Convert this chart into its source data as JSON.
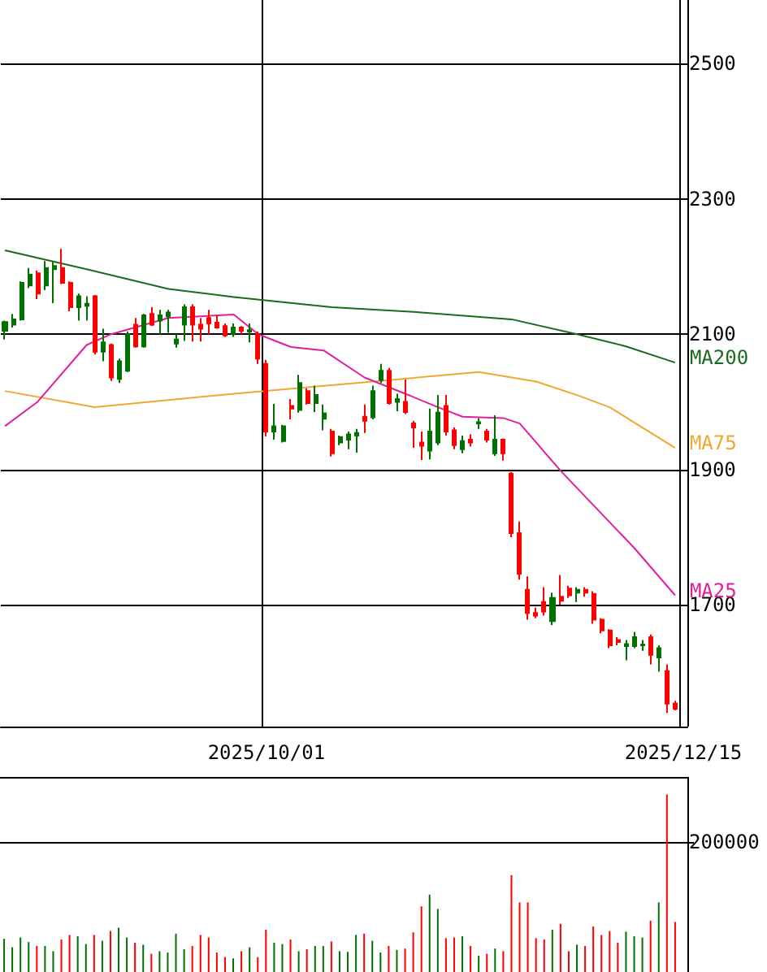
{
  "chart_data": [
    {
      "type": "candlestick",
      "categories": [
        null,
        null,
        null,
        null,
        null,
        null,
        null,
        null,
        null,
        null,
        null,
        null,
        null,
        null,
        null,
        null,
        null,
        null,
        null,
        null,
        null,
        null,
        null,
        null,
        null,
        null,
        null,
        null,
        null,
        null,
        null,
        null,
        "2025/10/01",
        null,
        null,
        null,
        null,
        null,
        null,
        null,
        null,
        null,
        null,
        null,
        null,
        null,
        null,
        null,
        null,
        null,
        null,
        null,
        null,
        null,
        null,
        null,
        null,
        null,
        null,
        null,
        null,
        null,
        null,
        null,
        null,
        null,
        null,
        null,
        null,
        null,
        null,
        null,
        null,
        null,
        null,
        null,
        null,
        null,
        null,
        null,
        null,
        null,
        null,
        "2025/12/15"
      ],
      "ohlc": [
        [
          2105,
          2120,
          2092,
          2118
        ],
        [
          2114,
          2130,
          2110,
          2122
        ],
        [
          2122,
          2178,
          2120,
          2176
        ],
        [
          2172,
          2198,
          2168,
          2188
        ],
        [
          2190,
          2194,
          2152,
          2160
        ],
        [
          2172,
          2208,
          2165,
          2198
        ],
        [
          2196,
          2208,
          2146,
          2201
        ],
        [
          2198,
          2226,
          2174,
          2176
        ],
        [
          2176,
          2178,
          2134,
          2140
        ],
        [
          2140,
          2160,
          2120,
          2156
        ],
        [
          2142,
          2156,
          2120,
          2145
        ],
        [
          2156,
          2158,
          2070,
          2074
        ],
        [
          2074,
          2108,
          2060,
          2088
        ],
        [
          2084,
          2086,
          2031,
          2036
        ],
        [
          2034,
          2064,
          2028,
          2060
        ],
        [
          2046,
          2104,
          2044,
          2100
        ],
        [
          2114,
          2124,
          2080,
          2082
        ],
        [
          2082,
          2130,
          2080,
          2128
        ],
        [
          2130,
          2140,
          2112,
          2114
        ],
        [
          2120,
          2136,
          2100,
          2128
        ],
        [
          2126,
          2136,
          2102,
          2132
        ],
        [
          2086,
          2100,
          2080,
          2092
        ],
        [
          2114,
          2144,
          2090,
          2140
        ],
        [
          2140,
          2144,
          2089,
          2114
        ],
        [
          2114,
          2124,
          2089,
          2108
        ],
        [
          2124,
          2136,
          2100,
          2116
        ],
        [
          2117,
          2128,
          2108,
          2110
        ],
        [
          2112,
          2116,
          2096,
          2098
        ],
        [
          2100,
          2116,
          2096,
          2110
        ],
        [
          2110,
          2112,
          2100,
          2105
        ],
        [
          2104,
          2116,
          2088,
          2106
        ],
        [
          2100,
          2104,
          2056,
          2064
        ],
        [
          2056,
          2062,
          1949,
          1956
        ],
        [
          1956,
          1997,
          1944,
          1964
        ],
        [
          1942,
          1966,
          1940,
          1964
        ],
        [
          1994,
          2004,
          1974,
          1990
        ],
        [
          1988,
          2040,
          1984,
          2028
        ],
        [
          2016,
          2020,
          1996,
          1998
        ],
        [
          1998,
          2024,
          1985,
          2010
        ],
        [
          1975,
          1996,
          1958,
          1983
        ],
        [
          1956,
          1960,
          1919,
          1924
        ],
        [
          1940,
          1950,
          1936,
          1948
        ],
        [
          1944,
          1956,
          1930,
          1952
        ],
        [
          1950,
          1960,
          1925,
          1954
        ],
        [
          1978,
          1996,
          1954,
          1972
        ],
        [
          1977,
          2024,
          1974,
          2016
        ],
        [
          2032,
          2056,
          2028,
          2046
        ],
        [
          2046,
          2050,
          1996,
          1998
        ],
        [
          2000,
          2012,
          1986,
          2004
        ],
        [
          2000,
          2033,
          1982,
          1985
        ],
        [
          1968,
          1972,
          1932,
          1962
        ],
        [
          1940,
          1956,
          1914,
          1935
        ],
        [
          1928,
          1990,
          1915,
          1956
        ],
        [
          1940,
          2010,
          1936,
          1984
        ],
        [
          1994,
          2010,
          1950,
          1956
        ],
        [
          1958,
          1962,
          1930,
          1936
        ],
        [
          1930,
          1950,
          1924,
          1942
        ],
        [
          1944,
          1952,
          1934,
          1940
        ],
        [
          1968,
          1976,
          1960,
          1970
        ],
        [
          1956,
          1960,
          1940,
          1944
        ],
        [
          1924,
          1980,
          1920,
          1944
        ],
        [
          1944,
          1946,
          1913,
          1924
        ],
        [
          1894,
          1896,
          1800,
          1806
        ],
        [
          1806,
          1823,
          1737,
          1746
        ],
        [
          1722,
          1742,
          1678,
          1688
        ],
        [
          1688,
          1696,
          1680,
          1684
        ],
        [
          1704,
          1726,
          1684,
          1690
        ],
        [
          1676,
          1718,
          1670,
          1710
        ],
        [
          1712,
          1744,
          1700,
          1706
        ],
        [
          1724,
          1728,
          1710,
          1714
        ],
        [
          1718,
          1726,
          1704,
          1722
        ],
        [
          1722,
          1726,
          1712,
          1718
        ],
        [
          1716,
          1720,
          1672,
          1678
        ],
        [
          1678,
          1680,
          1658,
          1662
        ],
        [
          1662,
          1664,
          1636,
          1640
        ],
        [
          1648,
          1652,
          1640,
          1645
        ],
        [
          1639,
          1648,
          1618,
          1642
        ],
        [
          1639,
          1660,
          1636,
          1652
        ],
        [
          1640,
          1648,
          1632,
          1641
        ],
        [
          1652,
          1656,
          1612,
          1626
        ],
        [
          1622,
          1640,
          1601,
          1636
        ],
        [
          1602,
          1612,
          1540,
          1554
        ],
        [
          1554,
          1558,
          1544,
          1546
        ],
        null
      ],
      "colors": [
        "#007000",
        "#007000",
        "#007000",
        "#007000",
        "#ff0000",
        "#007000",
        "#007000",
        "#ff0000",
        "#ff0000",
        "#007000",
        "#007000",
        "#ff0000",
        "#007000",
        "#ff0000",
        "#007000",
        "#007000",
        "#ff0000",
        "#007000",
        "#ff0000",
        "#007000",
        "#007000",
        "#007000",
        "#007000",
        "#ff0000",
        "#ff0000",
        "#ff0000",
        "#ff0000",
        "#ff0000",
        "#007000",
        "#ff0000",
        "#007000",
        "#ff0000",
        "#ff0000",
        "#007000",
        "#007000",
        "#ff0000",
        "#007000",
        "#ff0000",
        "#007000",
        "#007000",
        "#ff0000",
        "#007000",
        "#007000",
        "#007000",
        "#ff0000",
        "#007000",
        "#007000",
        "#ff0000",
        "#007000",
        "#ff0000",
        "#ff0000",
        "#ff0000",
        "#007000",
        "#007000",
        "#ff0000",
        "#ff0000",
        "#007000",
        "#ff0000",
        "#007000",
        "#ff0000",
        "#007000",
        "#ff0000",
        "#ff0000",
        "#ff0000",
        "#ff0000",
        "#ff0000",
        "#ff0000",
        "#007000",
        "#ff0000",
        "#ff0000",
        "#007000",
        "#ff0000",
        "#ff0000",
        "#ff0000",
        "#ff0000",
        "#ff0000",
        "#007000",
        "#007000",
        "#007000",
        "#ff0000",
        "#007000",
        "#ff0000",
        "#ff0000",
        null
      ],
      "series": [
        {
          "type": "line",
          "name": "MA200",
          "color": "#1a6b1a",
          "values": [
            2224,
            null,
            null,
            null,
            null,
            null,
            null,
            null,
            null,
            null,
            2196,
            null,
            null,
            null,
            null,
            null,
            null,
            null,
            null,
            null,
            2167,
            null,
            null,
            null,
            null,
            null,
            null,
            null,
            2155,
            null,
            null,
            null,
            null,
            null,
            null,
            null,
            null,
            null,
            null,
            null,
            2140,
            null,
            null,
            null,
            null,
            null,
            null,
            null,
            null,
            null,
            2133,
            null,
            null,
            null,
            null,
            null,
            null,
            null,
            null,
            null,
            null,
            null,
            2122,
            null,
            null,
            null,
            null,
            null,
            null,
            null,
            2100,
            null,
            null,
            null,
            null,
            null,
            2082,
            null,
            null,
            null,
            null,
            null,
            2058,
            null
          ]
        },
        {
          "type": "line",
          "name": "MA75",
          "color": "#f0a830",
          "values": [
            2016,
            null,
            null,
            null,
            null,
            null,
            null,
            null,
            null,
            null,
            null,
            1992,
            null,
            null,
            null,
            null,
            null,
            null,
            null,
            null,
            null,
            null,
            null,
            null,
            null,
            null,
            null,
            null,
            2012,
            null,
            null,
            null,
            null,
            null,
            null,
            null,
            null,
            null,
            null,
            null,
            null,
            null,
            null,
            null,
            null,
            2030,
            null,
            null,
            null,
            null,
            null,
            null,
            null,
            null,
            null,
            null,
            null,
            null,
            2044,
            null,
            null,
            null,
            null,
            null,
            null,
            2030,
            null,
            null,
            null,
            null,
            2010,
            null,
            null,
            null,
            1992,
            null,
            null,
            null,
            null,
            null,
            null,
            null,
            1932,
            null
          ]
        },
        {
          "type": "line",
          "name": "MA25",
          "color": "#e0209a",
          "values": [
            1964,
            null,
            null,
            null,
            2000,
            null,
            null,
            null,
            null,
            null,
            2084,
            null,
            null,
            2100,
            null,
            null,
            null,
            null,
            null,
            null,
            2124,
            null,
            null,
            null,
            null,
            null,
            null,
            null,
            2129,
            null,
            null,
            2100,
            null,
            null,
            null,
            2081,
            null,
            null,
            null,
            2076,
            null,
            null,
            null,
            null,
            2036,
            null,
            null,
            null,
            null,
            2012,
            null,
            null,
            null,
            1992,
            null,
            null,
            1978,
            null,
            null,
            null,
            null,
            1976,
            null,
            1968,
            null,
            null,
            null,
            null,
            1898,
            null,
            null,
            null,
            null,
            null,
            null,
            null,
            null,
            1784,
            null,
            null,
            null,
            null,
            1714,
            null
          ]
        }
      ],
      "ylim": [
        1520,
        2594
      ],
      "yticks": [
        1700,
        1900,
        2100,
        2300,
        2500
      ],
      "grid": true,
      "legend": false
    },
    {
      "type": "bar",
      "categories": [
        null,
        null,
        null,
        null,
        null,
        null,
        null,
        null,
        null,
        null,
        null,
        null,
        null,
        null,
        null,
        null,
        null,
        null,
        null,
        null,
        null,
        null,
        null,
        null,
        null,
        null,
        null,
        null,
        null,
        null,
        null,
        null,
        null,
        null,
        null,
        null,
        null,
        null,
        null,
        null,
        null,
        null,
        null,
        null,
        null,
        null,
        null,
        null,
        null,
        null,
        null,
        null,
        null,
        null,
        null,
        null,
        null,
        null,
        null,
        null,
        null,
        null,
        null,
        null,
        null,
        null,
        null,
        null,
        null,
        null,
        null,
        null,
        null,
        null,
        null,
        null,
        null,
        null,
        null,
        null,
        null,
        null,
        null,
        null
      ],
      "values": [
        51000,
        38000,
        53000,
        46000,
        40000,
        40000,
        32000,
        50000,
        57000,
        55000,
        43000,
        57000,
        48000,
        63000,
        68000,
        53000,
        45000,
        42000,
        28000,
        32000,
        30000,
        59000,
        35000,
        40000,
        57000,
        53000,
        30000,
        23000,
        21000,
        32000,
        38000,
        23000,
        65000,
        45000,
        43000,
        50000,
        32000,
        35000,
        40000,
        40000,
        47000,
        32000,
        31000,
        57000,
        59000,
        48000,
        30000,
        40000,
        34000,
        36000,
        61000,
        101000,
        119000,
        97000,
        52000,
        53000,
        55000,
        40000,
        25000,
        28000,
        36000,
        32000,
        149000,
        107000,
        107000,
        52000,
        50000,
        65000,
        74000,
        32000,
        42000,
        40000,
        70000,
        57000,
        63000,
        45000,
        62000,
        55000,
        53000,
        79000,
        107000,
        273000,
        77000,
        null
      ],
      "colors": [
        "#007000",
        "#007000",
        "#007000",
        "#007000",
        "#ff0000",
        "#007000",
        "#007000",
        "#ff0000",
        "#ff0000",
        "#007000",
        "#007000",
        "#ff0000",
        "#007000",
        "#ff0000",
        "#007000",
        "#007000",
        "#ff0000",
        "#007000",
        "#ff0000",
        "#007000",
        "#007000",
        "#007000",
        "#007000",
        "#ff0000",
        "#ff0000",
        "#ff0000",
        "#ff0000",
        "#ff0000",
        "#007000",
        "#ff0000",
        "#007000",
        "#ff0000",
        "#ff0000",
        "#007000",
        "#007000",
        "#ff0000",
        "#007000",
        "#ff0000",
        "#007000",
        "#007000",
        "#ff0000",
        "#007000",
        "#007000",
        "#007000",
        "#ff0000",
        "#007000",
        "#007000",
        "#ff0000",
        "#007000",
        "#ff0000",
        "#ff0000",
        "#ff0000",
        "#007000",
        "#007000",
        "#ff0000",
        "#ff0000",
        "#007000",
        "#ff0000",
        "#007000",
        "#ff0000",
        "#007000",
        "#ff0000",
        "#ff0000",
        "#ff0000",
        "#ff0000",
        "#ff0000",
        "#ff0000",
        "#007000",
        "#ff0000",
        "#ff0000",
        "#007000",
        "#ff0000",
        "#ff0000",
        "#ff0000",
        "#ff0000",
        "#ff0000",
        "#007000",
        "#007000",
        "#007000",
        "#ff0000",
        "#007000",
        "#ff0000",
        "#ff0000",
        null
      ],
      "ylim": [
        0,
        300000
      ],
      "yticks": [
        {
          "value": 0,
          "label": null
        },
        200000
      ],
      "grid": "y",
      "tick_labels": "y",
      "legend": false
    }
  ]
}
